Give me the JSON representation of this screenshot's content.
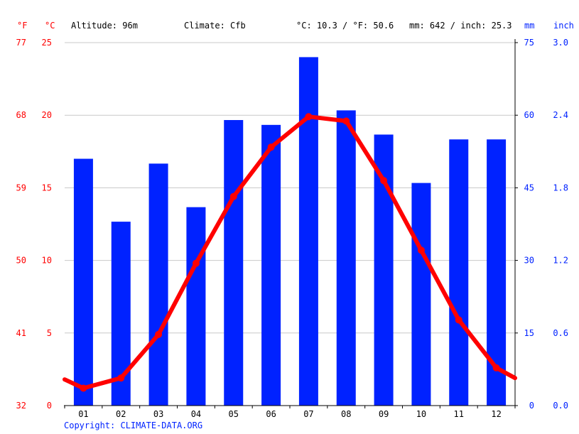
{
  "header": {
    "unit_f": "°F",
    "unit_c": "°C",
    "altitude": "Altitude: 96m",
    "climate": "Climate: Cfb",
    "temp_avg": "°C: 10.3 / °F: 50.6",
    "precip_total": "mm: 642 / inch: 25.3",
    "unit_mm": "mm",
    "unit_inch": "inch"
  },
  "copyright": "Copyright: CLIMATE-DATA.ORG",
  "colors": {
    "temperature": "#ff0000",
    "precipitation": "#0022ff",
    "grid": "#c8c8c8",
    "axis": "#000000"
  },
  "chart_data": {
    "type": "bar",
    "categories": [
      "01",
      "02",
      "03",
      "04",
      "05",
      "06",
      "07",
      "08",
      "09",
      "10",
      "11",
      "12"
    ],
    "series": [
      {
        "type": "bar",
        "axis": "right",
        "values": [
          51,
          38,
          50,
          41,
          59,
          58,
          72,
          61,
          56,
          46,
          55,
          55
        ]
      },
      {
        "type": "line",
        "axis": "left",
        "values": [
          1.2,
          1.9,
          4.9,
          9.8,
          14.4,
          17.8,
          19.9,
          19.6,
          15.5,
          10.7,
          5.9,
          2.6
        ],
        "edge_start": 1.8,
        "edge_end": 1.9
      }
    ],
    "left_axis_c": {
      "ticks": [
        0,
        5,
        10,
        15,
        20,
        25
      ],
      "range": [
        0,
        25
      ]
    },
    "left_axis_f": {
      "ticks": [
        32,
        41,
        50,
        59,
        68,
        77
      ]
    },
    "right_axis_mm": {
      "ticks": [
        0,
        15,
        30,
        45,
        60,
        75
      ],
      "range": [
        0,
        75
      ]
    },
    "right_axis_inch": {
      "ticks": [
        "0.0",
        "0.6",
        "1.2",
        "1.8",
        "2.4",
        "3.0"
      ]
    },
    "grid": true
  }
}
